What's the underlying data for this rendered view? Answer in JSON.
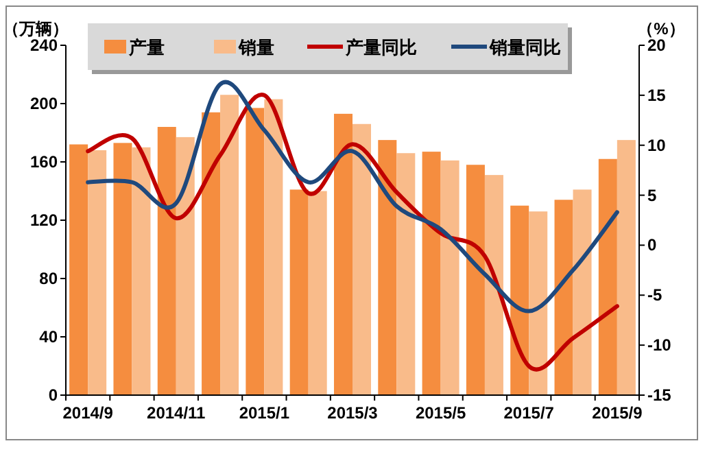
{
  "chart_data": {
    "type": "bar",
    "ylabel": "（万辆）",
    "y2label": "（%）",
    "categories": [
      "2014/9",
      null,
      "2014/11",
      null,
      "2015/1",
      null,
      "2015/3",
      null,
      "2015/5",
      null,
      "2015/7",
      null,
      "2015/9"
    ],
    "series": [
      {
        "name": "产量",
        "color": "#f58d3f",
        "values": [
          172,
          173,
          184,
          194,
          197,
          141,
          193,
          175,
          167,
          158,
          130,
          134,
          162
        ]
      },
      {
        "name": "销量",
        "color": "#f9bb8a",
        "values": [
          168,
          170,
          177,
          206,
          203,
          140,
          186,
          166,
          161,
          151,
          126,
          141,
          175
        ]
      },
      {
        "name": "产量同比",
        "type": "line",
        "axis": "y2",
        "color": "#c00000",
        "values": [
          9.4,
          10.7,
          2.7,
          9.0,
          15.0,
          5.2,
          10.1,
          5.3,
          1.2,
          -1.1,
          -12.1,
          -9.3,
          -6.1
        ]
      },
      {
        "name": "销量同比",
        "type": "line",
        "axis": "y2",
        "color": "#1f497d",
        "values": [
          6.3,
          6.3,
          4.2,
          16.1,
          11.5,
          6.3,
          9.4,
          3.9,
          1.6,
          -2.9,
          -6.6,
          -2.5,
          3.3
        ]
      }
    ],
    "ylim": [
      0,
      240
    ],
    "yticks": [
      0,
      40,
      80,
      120,
      160,
      200,
      240
    ],
    "y2lim": [
      -15,
      20
    ],
    "y2ticks": [
      -15,
      -10,
      -5,
      0,
      5,
      10,
      15,
      20
    ],
    "legend": "top",
    "grid": false
  }
}
